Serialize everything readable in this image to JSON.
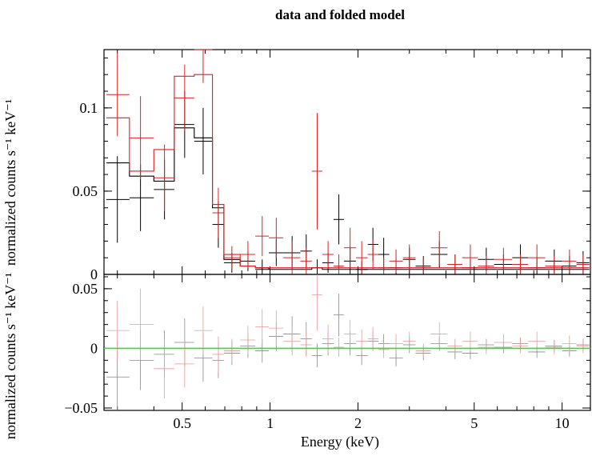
{
  "chart_data": {
    "type": "scatter",
    "title": "data and folded model",
    "xlabel": "Energy (keV)",
    "x_scale": "log",
    "xlim": [
      0.27,
      12.5
    ],
    "x_ticks": [
      {
        "value": 0.5,
        "label": "0.5"
      },
      {
        "value": 1,
        "label": "1"
      },
      {
        "value": 2,
        "label": "2"
      },
      {
        "value": 5,
        "label": "5"
      },
      {
        "value": 10,
        "label": "10"
      }
    ],
    "panels": [
      {
        "name": "spectrum",
        "ylabel": "normalized counts s⁻¹ keV⁻¹",
        "ylim": [
          0,
          0.135
        ],
        "y_ticks": [
          {
            "value": 0,
            "label": "0"
          },
          {
            "value": 0.05,
            "label": "0.05"
          },
          {
            "value": 0.1,
            "label": "0.1"
          }
        ]
      },
      {
        "name": "residuals",
        "ylabel": "normalized counts s⁻¹ keV⁻¹",
        "ylim": [
          -0.052,
          0.062
        ],
        "y_ticks": [
          {
            "value": -0.05,
            "label": "−0.05"
          },
          {
            "value": 0,
            "label": "0"
          },
          {
            "value": 0.05,
            "label": "0.05"
          }
        ],
        "zero_line_color": "#33dd33"
      }
    ],
    "series": [
      {
        "color": "#000000",
        "model_color": "#000000",
        "data": [
          {
            "x": 0.3,
            "x_lo": 0.275,
            "x_hi": 0.33,
            "y": 0.045,
            "y_err": 0.026
          },
          {
            "x": 0.36,
            "x_lo": 0.33,
            "x_hi": 0.4,
            "y": 0.046,
            "y_err": 0.02
          },
          {
            "x": 0.435,
            "x_lo": 0.4,
            "x_hi": 0.47,
            "y": 0.051,
            "y_err": 0.018
          },
          {
            "x": 0.51,
            "x_lo": 0.47,
            "x_hi": 0.55,
            "y": 0.09,
            "y_err": 0.02
          },
          {
            "x": 0.59,
            "x_lo": 0.55,
            "x_hi": 0.635,
            "y": 0.08,
            "y_err": 0.02
          },
          {
            "x": 0.665,
            "x_lo": 0.635,
            "x_hi": 0.695,
            "y": 0.03,
            "y_err": 0.014
          },
          {
            "x": 0.74,
            "x_lo": 0.695,
            "x_hi": 0.79,
            "y": 0.007,
            "y_err": 0.006
          },
          {
            "x": 0.84,
            "x_lo": 0.79,
            "x_hi": 0.89,
            "y": 0.008,
            "y_err": 0.006
          },
          {
            "x": 0.94,
            "x_lo": 0.89,
            "x_hi": 0.99,
            "y": 0.003,
            "y_err": 0.006
          },
          {
            "x": 1.05,
            "x_lo": 0.99,
            "x_hi": 1.11,
            "y": 0.013,
            "y_err": 0.008
          },
          {
            "x": 1.19,
            "x_lo": 1.11,
            "x_hi": 1.27,
            "y": 0.013,
            "y_err": 0.01
          },
          {
            "x": 1.33,
            "x_lo": 1.27,
            "x_hi": 1.39,
            "y": 0.014,
            "y_err": 0.01
          },
          {
            "x": 1.45,
            "x_lo": 1.39,
            "x_hi": 1.51,
            "y": 0.004,
            "y_err": 0.005
          },
          {
            "x": 1.58,
            "x_lo": 1.51,
            "x_hi": 1.65,
            "y": 0.007,
            "y_err": 0.006
          },
          {
            "x": 1.72,
            "x_lo": 1.65,
            "x_hi": 1.79,
            "y": 0.033,
            "y_err": 0.015
          },
          {
            "x": 1.88,
            "x_lo": 1.79,
            "x_hi": 1.97,
            "y": 0.008,
            "y_err": 0.008
          },
          {
            "x": 2.06,
            "x_lo": 1.97,
            "x_hi": 2.16,
            "y": 0.003,
            "y_err": 0.005
          },
          {
            "x": 2.25,
            "x_lo": 2.16,
            "x_hi": 2.35,
            "y": 0.018,
            "y_err": 0.01
          },
          {
            "x": 2.45,
            "x_lo": 2.35,
            "x_hi": 2.56,
            "y": 0.012,
            "y_err": 0.01
          },
          {
            "x": 2.7,
            "x_lo": 2.56,
            "x_hi": 2.85,
            "y": 0.004,
            "y_err": 0.006
          },
          {
            "x": 3.0,
            "x_lo": 2.85,
            "x_hi": 3.15,
            "y": 0.009,
            "y_err": 0.007
          },
          {
            "x": 3.35,
            "x_lo": 3.15,
            "x_hi": 3.55,
            "y": 0.005,
            "y_err": 0.006
          },
          {
            "x": 3.8,
            "x_lo": 3.55,
            "x_hi": 4.05,
            "y": 0.012,
            "y_err": 0.008
          },
          {
            "x": 4.3,
            "x_lo": 4.05,
            "x_hi": 4.55,
            "y": 0.006,
            "y_err": 0.006
          },
          {
            "x": 4.85,
            "x_lo": 4.55,
            "x_hi": 5.15,
            "y": 0.004,
            "y_err": 0.005
          },
          {
            "x": 5.5,
            "x_lo": 5.15,
            "x_hi": 5.85,
            "y": 0.009,
            "y_err": 0.007
          },
          {
            "x": 6.3,
            "x_lo": 5.85,
            "x_hi": 6.75,
            "y": 0.006,
            "y_err": 0.006
          },
          {
            "x": 7.2,
            "x_lo": 6.75,
            "x_hi": 7.65,
            "y": 0.01,
            "y_err": 0.008
          },
          {
            "x": 8.2,
            "x_lo": 7.65,
            "x_hi": 8.75,
            "y": 0.004,
            "y_err": 0.006
          },
          {
            "x": 9.4,
            "x_lo": 8.75,
            "x_hi": 10.0,
            "y": 0.008,
            "y_err": 0.007
          },
          {
            "x": 10.6,
            "x_lo": 10.0,
            "x_hi": 11.2,
            "y": 0.005,
            "y_err": 0.006
          },
          {
            "x": 11.8,
            "x_lo": 11.2,
            "x_hi": 12.4,
            "y": 0.007,
            "y_err": 0.007
          }
        ],
        "model": [
          0.067,
          0.059,
          0.056,
          0.088,
          0.082,
          0.04,
          0.009,
          0.005,
          0.004,
          0.003,
          0.003,
          0.003,
          0.004,
          0.003,
          0.003,
          0.003,
          0.003,
          0.003,
          0.003,
          0.003,
          0.003,
          0.003,
          0.003,
          0.003,
          0.003,
          0.003,
          0.003,
          0.003,
          0.003,
          0.003,
          0.003,
          0.003
        ],
        "residuals": [
          {
            "x": 0.3,
            "y": -0.024,
            "y_err": 0.03
          },
          {
            "x": 0.36,
            "y": -0.01,
            "y_err": 0.025
          },
          {
            "x": 0.435,
            "y": -0.005,
            "y_err": 0.02
          },
          {
            "x": 0.51,
            "y": 0.005,
            "y_err": 0.02
          },
          {
            "x": 0.59,
            "y": -0.008,
            "y_err": 0.02
          },
          {
            "x": 0.665,
            "y": -0.01,
            "y_err": 0.015
          },
          {
            "x": 0.74,
            "y": -0.004,
            "y_err": 0.01
          },
          {
            "x": 0.84,
            "y": 0.002,
            "y_err": 0.01
          },
          {
            "x": 0.94,
            "y": -0.002,
            "y_err": 0.01
          },
          {
            "x": 1.05,
            "y": 0.01,
            "y_err": 0.012
          },
          {
            "x": 1.19,
            "y": 0.012,
            "y_err": 0.015
          },
          {
            "x": 1.33,
            "y": 0.008,
            "y_err": 0.014
          },
          {
            "x": 1.45,
            "y": -0.006,
            "y_err": 0.01
          },
          {
            "x": 1.58,
            "y": 0.004,
            "y_err": 0.01
          },
          {
            "x": 1.72,
            "y": 0.028,
            "y_err": 0.018
          },
          {
            "x": 1.88,
            "y": 0.004,
            "y_err": 0.01
          },
          {
            "x": 2.06,
            "y": -0.006,
            "y_err": 0.008
          },
          {
            "x": 2.25,
            "y": 0.006,
            "y_err": 0.008
          },
          {
            "x": 2.45,
            "y": 0.004,
            "y_err": 0.008
          },
          {
            "x": 2.7,
            "y": -0.008,
            "y_err": 0.007
          },
          {
            "x": 3.0,
            "y": 0.003,
            "y_err": 0.007
          },
          {
            "x": 3.35,
            "y": -0.004,
            "y_err": 0.006
          },
          {
            "x": 3.8,
            "y": 0.004,
            "y_err": 0.006
          },
          {
            "x": 4.3,
            "y": -0.003,
            "y_err": 0.006
          },
          {
            "x": 4.85,
            "y": -0.004,
            "y_err": 0.005
          },
          {
            "x": 5.5,
            "y": 0.003,
            "y_err": 0.005
          },
          {
            "x": 6.3,
            "y": 0.001,
            "y_err": 0.005
          },
          {
            "x": 7.2,
            "y": 0.004,
            "y_err": 0.005
          },
          {
            "x": 8.2,
            "y": -0.003,
            "y_err": 0.005
          },
          {
            "x": 9.4,
            "y": 0.002,
            "y_err": 0.005
          },
          {
            "x": 10.6,
            "y": -0.002,
            "y_err": 0.005
          },
          {
            "x": 11.8,
            "y": 0.003,
            "y_err": 0.005
          }
        ]
      },
      {
        "color": "#dd2222",
        "model_color": "#dd2222",
        "data": [
          {
            "x": 0.3,
            "x_lo": 0.275,
            "x_hi": 0.33,
            "y": 0.108,
            "y_err": 0.025
          },
          {
            "x": 0.36,
            "x_lo": 0.33,
            "x_hi": 0.4,
            "y": 0.082,
            "y_err": 0.025
          },
          {
            "x": 0.435,
            "x_lo": 0.4,
            "x_hi": 0.47,
            "y": 0.058,
            "y_err": 0.02
          },
          {
            "x": 0.51,
            "x_lo": 0.47,
            "x_hi": 0.55,
            "y": 0.106,
            "y_err": 0.02
          },
          {
            "x": 0.59,
            "x_lo": 0.55,
            "x_hi": 0.635,
            "y": 0.135,
            "y_err": 0.02
          },
          {
            "x": 0.665,
            "x_lo": 0.635,
            "x_hi": 0.695,
            "y": 0.037,
            "y_err": 0.015
          },
          {
            "x": 0.74,
            "x_lo": 0.695,
            "x_hi": 0.79,
            "y": 0.01,
            "y_err": 0.007
          },
          {
            "x": 0.84,
            "x_lo": 0.79,
            "x_hi": 0.89,
            "y": 0.012,
            "y_err": 0.008
          },
          {
            "x": 0.94,
            "x_lo": 0.89,
            "x_hi": 0.99,
            "y": 0.023,
            "y_err": 0.012
          },
          {
            "x": 1.05,
            "x_lo": 0.99,
            "x_hi": 1.11,
            "y": 0.022,
            "y_err": 0.012
          },
          {
            "x": 1.19,
            "x_lo": 1.11,
            "x_hi": 1.27,
            "y": 0.01,
            "y_err": 0.01
          },
          {
            "x": 1.33,
            "x_lo": 1.27,
            "x_hi": 1.39,
            "y": 0.008,
            "y_err": 0.008
          },
          {
            "x": 1.45,
            "x_lo": 1.39,
            "x_hi": 1.51,
            "y": 0.062,
            "y_err": 0.035
          },
          {
            "x": 1.58,
            "x_lo": 1.51,
            "x_hi": 1.65,
            "y": 0.012,
            "y_err": 0.008
          },
          {
            "x": 1.72,
            "x_lo": 1.65,
            "x_hi": 1.79,
            "y": 0.005,
            "y_err": 0.007
          },
          {
            "x": 1.88,
            "x_lo": 1.79,
            "x_hi": 1.97,
            "y": 0.016,
            "y_err": 0.012
          },
          {
            "x": 2.06,
            "x_lo": 1.97,
            "x_hi": 2.16,
            "y": 0.01,
            "y_err": 0.01
          },
          {
            "x": 2.25,
            "x_lo": 2.16,
            "x_hi": 2.35,
            "y": 0.012,
            "y_err": 0.009
          },
          {
            "x": 2.45,
            "x_lo": 2.35,
            "x_hi": 2.56,
            "y": 0.004,
            "y_err": 0.006
          },
          {
            "x": 2.7,
            "x_lo": 2.56,
            "x_hi": 2.85,
            "y": 0.008,
            "y_err": 0.007
          },
          {
            "x": 3.0,
            "x_lo": 2.85,
            "x_hi": 3.15,
            "y": 0.01,
            "y_err": 0.008
          },
          {
            "x": 3.35,
            "x_lo": 3.15,
            "x_hi": 3.55,
            "y": 0.004,
            "y_err": 0.006
          },
          {
            "x": 3.8,
            "x_lo": 3.55,
            "x_hi": 4.05,
            "y": 0.016,
            "y_err": 0.01
          },
          {
            "x": 4.3,
            "x_lo": 4.05,
            "x_hi": 4.55,
            "y": 0.006,
            "y_err": 0.006
          },
          {
            "x": 4.85,
            "x_lo": 4.55,
            "x_hi": 5.15,
            "y": 0.01,
            "y_err": 0.008
          },
          {
            "x": 5.5,
            "x_lo": 5.15,
            "x_hi": 5.85,
            "y": 0.005,
            "y_err": 0.006
          },
          {
            "x": 6.3,
            "x_lo": 5.85,
            "x_hi": 6.75,
            "y": 0.009,
            "y_err": 0.007
          },
          {
            "x": 7.2,
            "x_lo": 6.75,
            "x_hi": 7.65,
            "y": 0.006,
            "y_err": 0.006
          },
          {
            "x": 8.2,
            "x_lo": 7.65,
            "x_hi": 8.75,
            "y": 0.01,
            "y_err": 0.008
          },
          {
            "x": 9.4,
            "x_lo": 8.75,
            "x_hi": 10.0,
            "y": 0.005,
            "y_err": 0.006
          },
          {
            "x": 10.6,
            "x_lo": 10.0,
            "x_hi": 11.2,
            "y": 0.008,
            "y_err": 0.007
          },
          {
            "x": 11.8,
            "x_lo": 11.2,
            "x_hi": 12.4,
            "y": 0.006,
            "y_err": 0.006
          }
        ],
        "model": [
          0.094,
          0.062,
          0.075,
          0.119,
          0.12,
          0.042,
          0.012,
          0.005,
          0.004,
          0.004,
          0.004,
          0.004,
          0.004,
          0.004,
          0.004,
          0.004,
          0.004,
          0.004,
          0.004,
          0.004,
          0.004,
          0.004,
          0.004,
          0.004,
          0.004,
          0.004,
          0.004,
          0.004,
          0.004,
          0.004,
          0.004,
          0.004
        ],
        "residuals": [
          {
            "x": 0.3,
            "y": 0.015,
            "y_err": 0.025
          },
          {
            "x": 0.36,
            "y": 0.02,
            "y_err": 0.03
          },
          {
            "x": 0.435,
            "y": -0.017,
            "y_err": 0.025
          },
          {
            "x": 0.51,
            "y": -0.013,
            "y_err": 0.02
          },
          {
            "x": 0.59,
            "y": 0.015,
            "y_err": 0.02
          },
          {
            "x": 0.665,
            "y": -0.005,
            "y_err": 0.015
          },
          {
            "x": 0.74,
            "y": -0.002,
            "y_err": 0.01
          },
          {
            "x": 0.84,
            "y": 0.007,
            "y_err": 0.012
          },
          {
            "x": 0.94,
            "y": 0.018,
            "y_err": 0.015
          },
          {
            "x": 1.05,
            "y": 0.017,
            "y_err": 0.015
          },
          {
            "x": 1.19,
            "y": 0.006,
            "y_err": 0.012
          },
          {
            "x": 1.33,
            "y": 0.003,
            "y_err": 0.01
          },
          {
            "x": 1.45,
            "y": 0.045,
            "y_err": 0.03
          },
          {
            "x": 1.58,
            "y": 0.008,
            "y_err": 0.012
          },
          {
            "x": 1.72,
            "y": 0.001,
            "y_err": 0.008
          },
          {
            "x": 1.88,
            "y": 0.012,
            "y_err": 0.012
          },
          {
            "x": 2.06,
            "y": 0.006,
            "y_err": 0.01
          },
          {
            "x": 2.25,
            "y": 0.008,
            "y_err": 0.01
          },
          {
            "x": 2.45,
            "y": -0.001,
            "y_err": 0.007
          },
          {
            "x": 2.7,
            "y": 0.004,
            "y_err": 0.008
          },
          {
            "x": 3.0,
            "y": 0.006,
            "y_err": 0.008
          },
          {
            "x": 3.35,
            "y": -0.002,
            "y_err": 0.006
          },
          {
            "x": 3.8,
            "y": 0.012,
            "y_err": 0.01
          },
          {
            "x": 4.3,
            "y": 0.002,
            "y_err": 0.006
          },
          {
            "x": 4.85,
            "y": 0.006,
            "y_err": 0.008
          },
          {
            "x": 5.5,
            "y": 0.001,
            "y_err": 0.006
          },
          {
            "x": 6.3,
            "y": 0.005,
            "y_err": 0.007
          },
          {
            "x": 7.2,
            "y": 0.002,
            "y_err": 0.006
          },
          {
            "x": 8.2,
            "y": 0.006,
            "y_err": 0.008
          },
          {
            "x": 9.4,
            "y": 0.001,
            "y_err": 0.006
          },
          {
            "x": 10.6,
            "y": 0.004,
            "y_err": 0.007
          },
          {
            "x": 11.8,
            "y": 0.002,
            "y_err": 0.006
          }
        ]
      }
    ]
  }
}
